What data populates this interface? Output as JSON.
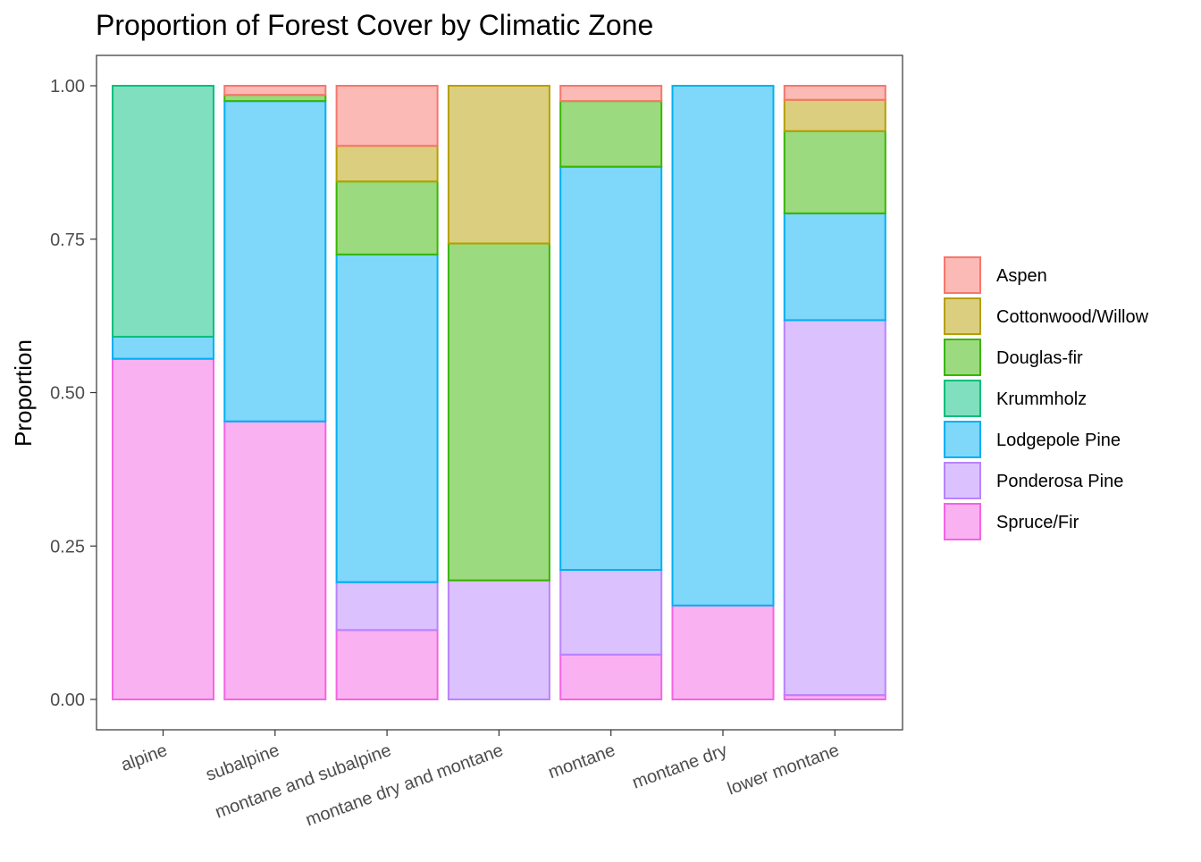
{
  "chart_data": {
    "type": "bar",
    "stacked": true,
    "title": "Proportion of Forest Cover by Climatic Zone",
    "xlabel": "",
    "ylabel": "Proportion",
    "ylim": [
      0,
      1
    ],
    "yticks": [
      "0.00",
      "0.25",
      "0.50",
      "0.75",
      "1.00"
    ],
    "ytick_values": [
      0,
      0.25,
      0.5,
      0.75,
      1.0
    ],
    "grid": false,
    "legend_position": "right",
    "categories": [
      "alpine",
      "subalpine",
      "montane and subalpine",
      "montane dry and montane",
      "montane",
      "montane dry",
      "lower montane"
    ],
    "series": [
      {
        "name": "Spruce/Fir",
        "color": "#F564E3",
        "values": [
          0.555,
          0.453,
          0.113,
          0.0,
          0.073,
          0.153,
          0.007
        ]
      },
      {
        "name": "Ponderosa Pine",
        "color": "#B983FF",
        "values": [
          0.0,
          0.0,
          0.078,
          0.194,
          0.138,
          0.0,
          0.611
        ]
      },
      {
        "name": "Lodgepole Pine",
        "color": "#00B0F6",
        "values": [
          0.036,
          0.522,
          0.534,
          0.0,
          0.657,
          0.847,
          0.174
        ]
      },
      {
        "name": "Krummholz",
        "color": "#00BF7D",
        "values": [
          0.409,
          0.0,
          0.0,
          0.0,
          0.0,
          0.0,
          0.0
        ]
      },
      {
        "name": "Douglas-fir",
        "color": "#39B600",
        "values": [
          0.0,
          0.01,
          0.119,
          0.549,
          0.107,
          0.0,
          0.134
        ]
      },
      {
        "name": "Cottonwood/Willow",
        "color": "#B79F00",
        "values": [
          0.0,
          0.0,
          0.058,
          0.257,
          0.0,
          0.0,
          0.051
        ]
      },
      {
        "name": "Aspen",
        "color": "#F8766D",
        "values": [
          0.0,
          0.015,
          0.098,
          0.0,
          0.025,
          0.0,
          0.023
        ]
      }
    ],
    "legend_order": [
      "Aspen",
      "Cottonwood/Willow",
      "Douglas-fir",
      "Krummholz",
      "Lodgepole Pine",
      "Ponderosa Pine",
      "Spruce/Fir"
    ]
  }
}
